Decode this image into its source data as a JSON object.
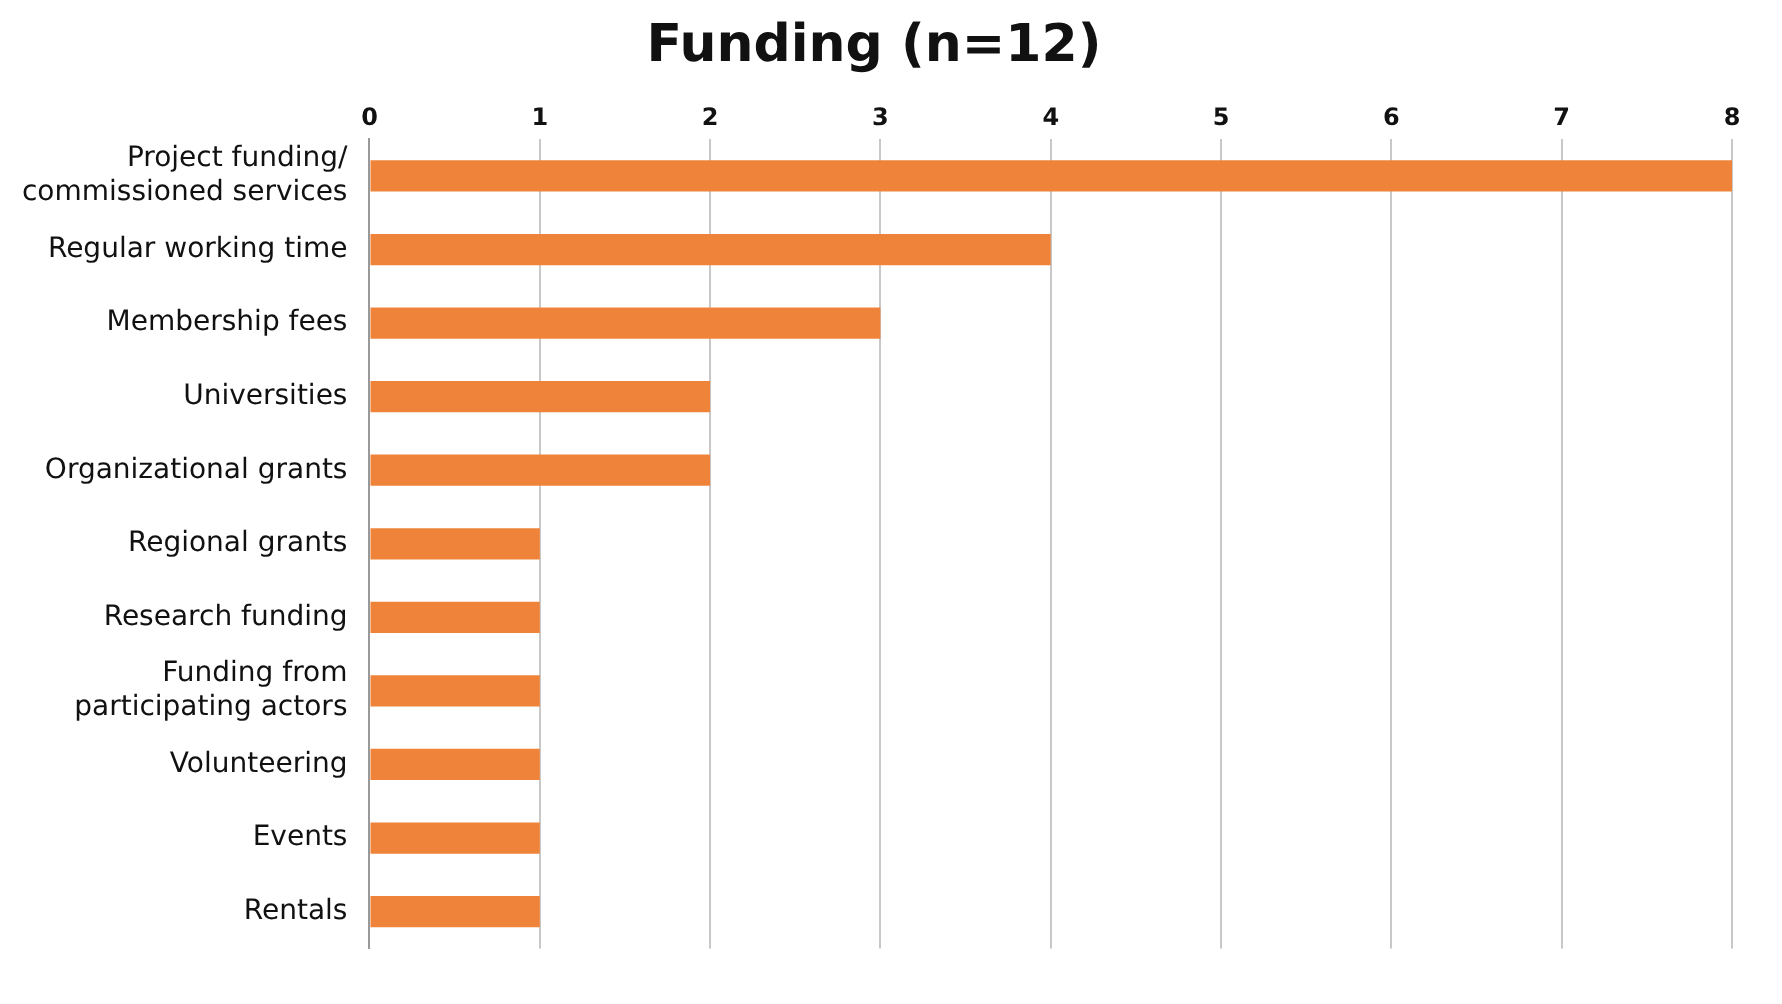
{
  "chart_data": {
    "type": "bar",
    "orientation": "horizontal",
    "title": "Funding (n=12)",
    "categories": [
      "Project funding/ commissioned services",
      "Regular working time",
      "Membership fees",
      "Universities",
      "Organizational grants",
      "Regional grants",
      "Research funding",
      "Funding from participating actors",
      "Volunteering",
      "Events",
      "Rentals"
    ],
    "values": [
      8,
      4,
      3,
      2,
      2,
      1,
      1,
      1,
      1,
      1,
      1
    ],
    "color": "#f0833a",
    "xlim": [
      0,
      8
    ],
    "xticks": [
      0,
      1,
      2,
      3,
      4,
      5,
      6,
      7,
      8
    ],
    "grid": "x",
    "legend": false
  }
}
